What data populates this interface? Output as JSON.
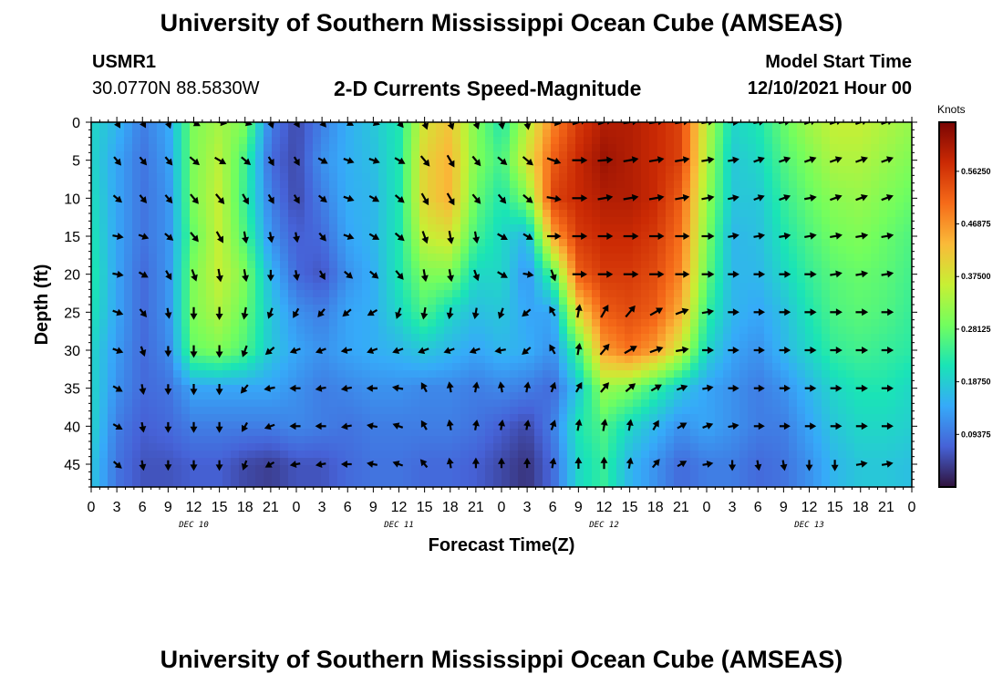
{
  "header": {
    "title": "University of Southern Mississippi Ocean Cube (AMSEAS)",
    "station_id": "USMR1",
    "station_coords": "30.0770N  88.5830W",
    "chart_title": "2-D Currents Speed-Magnitude",
    "model_label": "Model Start Time",
    "model_time": "12/10/2021 Hour 00"
  },
  "footer": {
    "title_repeat": "University of Southern Mississippi Ocean Cube (AMSEAS)"
  },
  "chart_data": {
    "type": "heatmap",
    "title": "2-D Currents Speed-Magnitude",
    "xlabel": "Forecast Time(Z)",
    "ylabel": "Depth (ft)",
    "x_ticks": [
      "0",
      "3",
      "6",
      "9",
      "12",
      "15",
      "18",
      "21",
      "0",
      "3",
      "6",
      "9",
      "12",
      "15",
      "18",
      "21",
      "0",
      "3",
      "6",
      "9",
      "12",
      "15",
      "18",
      "21",
      "0",
      "3",
      "6",
      "9",
      "12",
      "15",
      "18",
      "21",
      "0"
    ],
    "x_range_hours": [
      0,
      96
    ],
    "day_labels": [
      {
        "label": "DEC 10",
        "hour": 12
      },
      {
        "label": "DEC 11",
        "hour": 36
      },
      {
        "label": "DEC 12",
        "hour": 60
      },
      {
        "label": "DEC 13",
        "hour": 84
      }
    ],
    "y_ticks": [
      0,
      5,
      10,
      15,
      20,
      25,
      30,
      35,
      40,
      45
    ],
    "y_range_ft": [
      0,
      48
    ],
    "colorbar": {
      "unit": "Knots",
      "range": [
        0,
        0.65
      ],
      "tick_labels": [
        "0.56250",
        "0.46875",
        "0.37500",
        "0.28125",
        "0.18750",
        "0.09375"
      ],
      "tick_values": [
        0.5625,
        0.46875,
        0.375,
        0.28125,
        0.1875,
        0.09375
      ],
      "colors": [
        "#30123b",
        "#4662d7",
        "#36aaf9",
        "#1ae4b6",
        "#72fe5e",
        "#c8ef34",
        "#faba39",
        "#f66b19",
        "#cb2a04",
        "#7a0403"
      ]
    },
    "speed_grid": {
      "description": "Approximate current speed (knots), rows = depth 0..45 ft step 5, cols = forecast hour 0..96 step 3",
      "depths_ft": [
        0,
        5,
        10,
        15,
        20,
        25,
        30,
        35,
        40,
        45
      ],
      "hours": [
        0,
        3,
        6,
        9,
        12,
        15,
        18,
        21,
        24,
        27,
        30,
        33,
        36,
        39,
        42,
        45,
        48,
        51,
        54,
        57,
        60,
        63,
        66,
        69,
        72,
        75,
        78,
        81,
        84,
        87,
        90,
        93,
        96
      ],
      "values": [
        [
          0.2,
          0.16,
          0.1,
          0.14,
          0.3,
          0.33,
          0.3,
          0.1,
          0.05,
          0.1,
          0.15,
          0.18,
          0.22,
          0.38,
          0.42,
          0.3,
          0.22,
          0.35,
          0.48,
          0.56,
          0.6,
          0.6,
          0.58,
          0.55,
          0.35,
          0.2,
          0.22,
          0.28,
          0.33,
          0.36,
          0.36,
          0.34,
          0.32
        ],
        [
          0.2,
          0.14,
          0.09,
          0.13,
          0.3,
          0.35,
          0.25,
          0.08,
          0.05,
          0.12,
          0.15,
          0.17,
          0.22,
          0.4,
          0.44,
          0.3,
          0.25,
          0.38,
          0.52,
          0.58,
          0.62,
          0.6,
          0.58,
          0.55,
          0.34,
          0.18,
          0.2,
          0.26,
          0.3,
          0.34,
          0.34,
          0.32,
          0.3
        ],
        [
          0.21,
          0.14,
          0.09,
          0.12,
          0.3,
          0.36,
          0.24,
          0.1,
          0.05,
          0.1,
          0.15,
          0.16,
          0.22,
          0.4,
          0.44,
          0.28,
          0.22,
          0.3,
          0.55,
          0.58,
          0.6,
          0.6,
          0.58,
          0.52,
          0.32,
          0.18,
          0.18,
          0.24,
          0.28,
          0.31,
          0.32,
          0.3,
          0.28
        ],
        [
          0.22,
          0.14,
          0.09,
          0.12,
          0.28,
          0.36,
          0.26,
          0.12,
          0.07,
          0.08,
          0.14,
          0.16,
          0.22,
          0.36,
          0.38,
          0.25,
          0.2,
          0.16,
          0.45,
          0.56,
          0.58,
          0.58,
          0.56,
          0.5,
          0.3,
          0.16,
          0.17,
          0.22,
          0.26,
          0.29,
          0.3,
          0.28,
          0.26
        ],
        [
          0.23,
          0.14,
          0.08,
          0.12,
          0.3,
          0.36,
          0.3,
          0.16,
          0.08,
          0.06,
          0.12,
          0.15,
          0.22,
          0.3,
          0.3,
          0.2,
          0.2,
          0.12,
          0.26,
          0.52,
          0.56,
          0.56,
          0.54,
          0.48,
          0.28,
          0.16,
          0.16,
          0.2,
          0.24,
          0.27,
          0.28,
          0.27,
          0.25
        ],
        [
          0.22,
          0.14,
          0.08,
          0.12,
          0.3,
          0.34,
          0.28,
          0.18,
          0.12,
          0.1,
          0.14,
          0.15,
          0.2,
          0.26,
          0.2,
          0.17,
          0.18,
          0.14,
          0.14,
          0.4,
          0.52,
          0.54,
          0.52,
          0.44,
          0.24,
          0.16,
          0.14,
          0.17,
          0.22,
          0.26,
          0.27,
          0.26,
          0.24
        ],
        [
          0.2,
          0.13,
          0.08,
          0.11,
          0.28,
          0.3,
          0.26,
          0.18,
          0.14,
          0.12,
          0.14,
          0.15,
          0.16,
          0.18,
          0.16,
          0.14,
          0.16,
          0.15,
          0.12,
          0.26,
          0.46,
          0.5,
          0.46,
          0.36,
          0.2,
          0.14,
          0.12,
          0.16,
          0.2,
          0.24,
          0.25,
          0.24,
          0.23
        ],
        [
          0.2,
          0.12,
          0.08,
          0.09,
          0.14,
          0.14,
          0.14,
          0.14,
          0.12,
          0.1,
          0.11,
          0.12,
          0.12,
          0.11,
          0.11,
          0.1,
          0.11,
          0.1,
          0.08,
          0.18,
          0.32,
          0.3,
          0.24,
          0.18,
          0.14,
          0.12,
          0.1,
          0.12,
          0.16,
          0.2,
          0.22,
          0.22,
          0.2
        ],
        [
          0.2,
          0.1,
          0.07,
          0.08,
          0.1,
          0.1,
          0.1,
          0.1,
          0.11,
          0.1,
          0.09,
          0.1,
          0.1,
          0.1,
          0.1,
          0.09,
          0.07,
          0.05,
          0.1,
          0.22,
          0.26,
          0.2,
          0.16,
          0.12,
          0.14,
          0.12,
          0.1,
          0.1,
          0.14,
          0.18,
          0.2,
          0.2,
          0.19
        ],
        [
          0.18,
          0.09,
          0.06,
          0.06,
          0.07,
          0.07,
          0.05,
          0.04,
          0.06,
          0.06,
          0.08,
          0.09,
          0.09,
          0.08,
          0.08,
          0.07,
          0.05,
          0.03,
          0.08,
          0.2,
          0.24,
          0.16,
          0.12,
          0.08,
          0.1,
          0.1,
          0.08,
          0.09,
          0.12,
          0.16,
          0.18,
          0.18,
          0.17
        ]
      ]
    },
    "direction_grid": {
      "description": "Approximate arrow heading in degrees (0=up/north, 90=right/east), same grid as speed",
      "values": [
        [
          110,
          150,
          150,
          160,
          120,
          100,
          110,
          160,
          150,
          140,
          120,
          110,
          140,
          160,
          160,
          160,
          170,
          170,
          100,
          70,
          70,
          80,
          80,
          80,
          80,
          90,
          80,
          80,
          70,
          70,
          70,
          70,
          70
        ],
        [
          110,
          140,
          140,
          140,
          130,
          120,
          130,
          150,
          150,
          120,
          110,
          110,
          120,
          140,
          150,
          140,
          130,
          130,
          110,
          90,
          85,
          80,
          80,
          80,
          80,
          80,
          70,
          70,
          70,
          70,
          70,
          70,
          70
        ],
        [
          100,
          130,
          140,
          140,
          140,
          140,
          150,
          150,
          150,
          130,
          110,
          120,
          130,
          150,
          150,
          140,
          140,
          130,
          100,
          90,
          80,
          80,
          80,
          80,
          80,
          80,
          70,
          70,
          80,
          70,
          70,
          70,
          70
        ],
        [
          100,
          100,
          110,
          130,
          140,
          150,
          170,
          170,
          170,
          140,
          110,
          120,
          130,
          160,
          170,
          170,
          120,
          120,
          90,
          90,
          90,
          90,
          90,
          90,
          90,
          80,
          80,
          80,
          80,
          80,
          80,
          80,
          80
        ],
        [
          100,
          100,
          120,
          150,
          160,
          170,
          170,
          180,
          170,
          150,
          130,
          130,
          140,
          170,
          170,
          160,
          120,
          100,
          160,
          90,
          90,
          90,
          90,
          90,
          90,
          90,
          90,
          90,
          90,
          80,
          80,
          80,
          80
        ],
        [
          100,
          110,
          140,
          170,
          180,
          180,
          190,
          200,
          210,
          220,
          230,
          240,
          200,
          190,
          190,
          190,
          200,
          230,
          330,
          10,
          30,
          40,
          60,
          70,
          80,
          90,
          90,
          90,
          90,
          90,
          90,
          90,
          90
        ],
        [
          100,
          110,
          160,
          180,
          180,
          180,
          200,
          230,
          250,
          250,
          260,
          250,
          250,
          250,
          250,
          250,
          260,
          230,
          330,
          10,
          40,
          60,
          70,
          80,
          90,
          90,
          90,
          90,
          90,
          90,
          90,
          90,
          90
        ],
        [
          100,
          120,
          170,
          180,
          180,
          180,
          220,
          260,
          270,
          260,
          260,
          270,
          280,
          330,
          350,
          10,
          350,
          10,
          20,
          30,
          40,
          50,
          60,
          70,
          80,
          90,
          90,
          90,
          90,
          90,
          90,
          90,
          90
        ],
        [
          110,
          120,
          170,
          180,
          180,
          180,
          210,
          250,
          270,
          270,
          260,
          280,
          290,
          330,
          350,
          10,
          10,
          10,
          20,
          10,
          10,
          10,
          30,
          60,
          70,
          80,
          90,
          90,
          90,
          90,
          90,
          90,
          90
        ],
        [
          120,
          130,
          170,
          180,
          180,
          180,
          200,
          240,
          260,
          260,
          270,
          280,
          290,
          320,
          350,
          0,
          0,
          0,
          10,
          0,
          0,
          10,
          40,
          60,
          80,
          180,
          170,
          170,
          180,
          180,
          80,
          80,
          80
        ]
      ]
    }
  }
}
